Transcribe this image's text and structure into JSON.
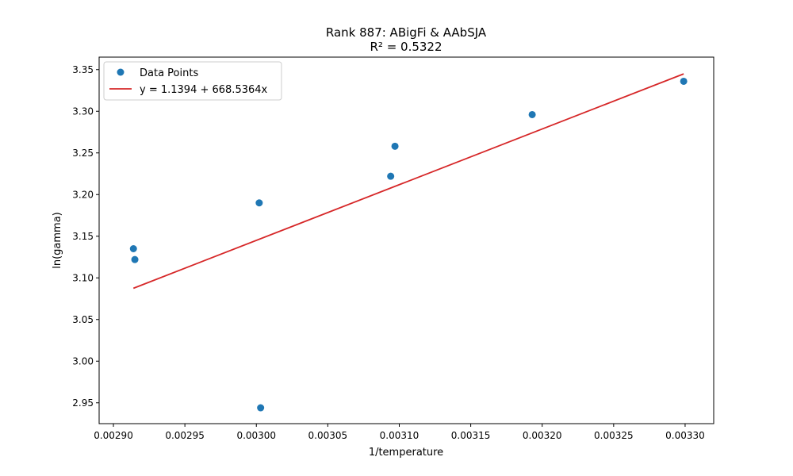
{
  "chart_data": {
    "type": "scatter",
    "title_line1": "Rank 887: ABigFi & AAbSJA",
    "title_line2": "R² = 0.5322",
    "xlabel": "1/temperature",
    "ylabel": "ln(gamma)",
    "xlim": [
      0.00289,
      0.00332
    ],
    "ylim": [
      2.925,
      3.365
    ],
    "xticks": [
      0.0029,
      0.00295,
      0.003,
      0.00305,
      0.0031,
      0.00315,
      0.0032,
      0.00325,
      0.0033
    ],
    "xtick_labels": [
      "0.00290",
      "0.00295",
      "0.00300",
      "0.00305",
      "0.00310",
      "0.00315",
      "0.00320",
      "0.00325",
      "0.00330"
    ],
    "yticks": [
      2.95,
      3.0,
      3.05,
      3.1,
      3.15,
      3.2,
      3.25,
      3.3,
      3.35
    ],
    "ytick_labels": [
      "2.95",
      "3.00",
      "3.05",
      "3.10",
      "3.15",
      "3.20",
      "3.25",
      "3.30",
      "3.35"
    ],
    "series": [
      {
        "name": "Data Points",
        "kind": "scatter",
        "color": "#1f77b4",
        "points": [
          {
            "x": 0.002914,
            "y": 3.135
          },
          {
            "x": 0.002915,
            "y": 3.122
          },
          {
            "x": 0.003002,
            "y": 3.19
          },
          {
            "x": 0.003003,
            "y": 2.944
          },
          {
            "x": 0.003094,
            "y": 3.222
          },
          {
            "x": 0.003097,
            "y": 3.258
          },
          {
            "x": 0.003193,
            "y": 3.296
          },
          {
            "x": 0.003299,
            "y": 3.336
          }
        ]
      },
      {
        "name": "y = 1.1394 + 668.5364x",
        "kind": "line",
        "color": "#d62728",
        "intercept": 1.1394,
        "slope": 668.5364,
        "x_range": [
          0.002914,
          0.003299
        ]
      }
    ],
    "legend_position": "upper-left",
    "grid": false
  }
}
